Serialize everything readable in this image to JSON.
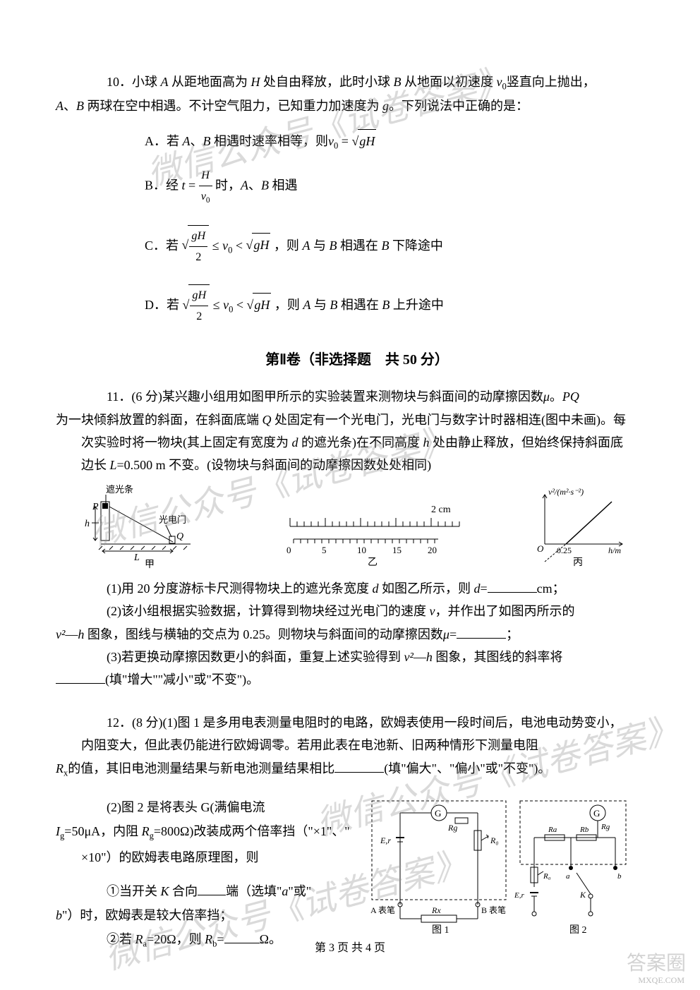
{
  "watermark_text": "微信公众号《试卷答案》",
  "corner_mark": "答案圈",
  "corner_sub": "MXQE.COM",
  "page_footer": "第 3 页 共 4 页",
  "q10": {
    "num": "10．",
    "text1": "小球 ",
    "A": "A",
    "text2": " 从距地面高为 ",
    "H": "H",
    "text3": " 处自由释放，此时小球 ",
    "B": "B",
    "text4": " 从地面以初速度 ",
    "v0": "v",
    "v0sub": "0",
    "text5": "竖直向上抛出，",
    "text6": "、",
    "text7": " 两球在空中相遇。不计空气阻力，已知重力加速度为 ",
    "g": "g",
    "text8": "。下列说法中正确的是：",
    "optA_label": "A．若 ",
    "optA_mid": "、",
    "optA_text": " 相遇时速率相等，则",
    "optA_eq": " = ",
    "optA_sqrt": "gH",
    "optA_v0": "v",
    "optB_label": "B．经 ",
    "optB_t": "t",
    "optB_eq": " = ",
    "optB_num": "H",
    "optB_den": "v",
    "optB_text": " 时，",
    "optB_text2": " 相遇",
    "optC_label": "C．若 ",
    "optC_num": "gH",
    "optC_den": "2",
    "optC_le": " ≤ ",
    "optC_lt": " < ",
    "optC_sqrt2": "gH",
    "optC_text": " ，则 ",
    "optC_text2": " 与 ",
    "optC_text3": " 相遇在 ",
    "optC_text4": " 下降途中",
    "optD_label": "D．若 ",
    "optD_text4": " 上升途中"
  },
  "section2_title": "第Ⅱ卷（非选择题　共 50 分）",
  "q11": {
    "num": "11．",
    "score": "(6 分)",
    "text1": "某兴趣小组用如图甲所示的实验装置来测物块与斜面间的动摩擦因数",
    "mu": "μ",
    "text2": "。",
    "PQ": "PQ",
    "text3": "为一块倾斜放置的斜面，在斜面底端 ",
    "Q": "Q",
    "text4": " 处固定有一个光电门，光电门与数字计时器相连(图中未画)。每次实验时将一物块(其上固定有宽度为 ",
    "d": "d",
    "text5": " 的遮光条)在不同高度 ",
    "h": "h",
    "text6": " 处由静止释放，但始终保持斜面底边长 ",
    "L": "L",
    "Leq": "=0.500 m",
    "text7": " 不变。(设物块与斜面间的动摩擦因数处处相同)",
    "sub1_label": "(1)",
    "sub1_text": "用 20 分度游标卡尺测得物块上的遮光条宽度 ",
    "sub1_text2": " 如图乙所示，则 ",
    "sub1_eq": "=",
    "sub1_unit": "cm；",
    "sub2_label": "(2)",
    "sub2_text": "该小组根据实验数据，计算得到物块经过光电门的速度 ",
    "v": "v",
    "sub2_text2": "，并作出了如图丙所示的",
    "sub2_graph": "—",
    "sub2_text3": " 图象，图线与横轴的交点为 0.25。则物块与斜面间的动摩擦因数",
    "sub2_eq": "=",
    "sub2_end": "；",
    "sub3_label": "(3)",
    "sub3_text": "若更换动摩擦因数更小的斜面，重复上述实验得到 ",
    "sub3_text2": " 图象，其图线的斜率将",
    "sub3_fill": "(填\"增大\"\"减小\"或\"不变\")。",
    "v2label": "v²",
    "diagram_caption_1": "甲",
    "diagram_caption_2": "乙",
    "diagram_caption_3": "丙",
    "diagram_label_p": "P",
    "diagram_label_q": "Q",
    "diagram_label_h": "h",
    "diagram_label_L": "L",
    "diagram_label_shade": "遮光条",
    "diagram_label_gate": "光电门",
    "ruler_main": [
      "0",
      "5",
      "10",
      "15",
      "20"
    ],
    "ruler_unit": "2 cm",
    "graph_ylabel": "v²/(m²·s⁻²)",
    "graph_xlabel": "h/m",
    "graph_origin": "O",
    "graph_xtick": "0.25"
  },
  "q12": {
    "num": "12．",
    "score": "(8 分)",
    "sub1_label": "(1)",
    "sub1_text": "图 1 是多用电表测量电阻时的电路，欧姆表使用一段时间后，电池电动势变小，内阻变大，但此表仍能进行欧姆调零。若用此表在电池新、旧两种情形下测量电阻",
    "Rx": "R",
    "Rxsub": "x",
    "sub1_text2": "的值，其旧电池测量结果与新电池测量结果相比",
    "sub1_fill": "(填\"偏大\"、\"偏小\"或\"不变\")。",
    "sub2_label": "(2)",
    "sub2_text": "图 2 是将表头 G(满偏电流",
    "Ig": "I",
    "Igsub": "g",
    "Igval": "=50μA，内阻 ",
    "Rg": "R",
    "Rgsub": "g",
    "Rgval": "=800Ω)改装成两个倍率挡（\"×1\"、\" ×10\"）的欧姆表电路原理图，则",
    "circ1_label": "①",
    "circ1_text": "当开关 ",
    "K": "K",
    "circ1_text2": " 合向",
    "circ1_text3": "端（选填\"",
    "a": "a",
    "circ1_text4": "\"或\"",
    "b": "b",
    "circ1_text5": "\"）时，欧姆表是较大倍率挡；",
    "circ2_label": "②",
    "circ2_text": "若 ",
    "Ra": "R",
    "Rasub": "a",
    "Raval": "=20Ω，则 ",
    "Rb": "R",
    "Rbsub": "b",
    "Rbeq": "=",
    "circ2_unit": "Ω。",
    "circuit_G": "G",
    "circuit_Rg": "Rg",
    "circuit_R0": "R₀",
    "circuit_Er": "E,r",
    "circuit_Rx": "Rx",
    "circuit_Ra": "Ra",
    "circuit_Rb": "Rb",
    "circuit_K": "K",
    "circuit_a": "a",
    "circuit_b": "b",
    "circuit_penA": "A 表笔",
    "circuit_penB": "B 表笔",
    "circuit_fig1": "图 1",
    "circuit_fig2": "图 2"
  }
}
